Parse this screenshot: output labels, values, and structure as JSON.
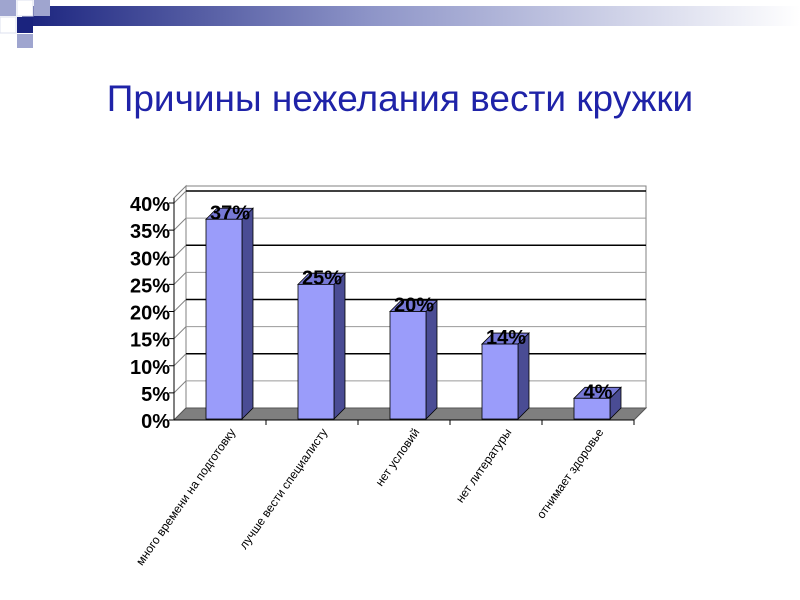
{
  "slide": {
    "title": "Причины нежелания вести кружки"
  },
  "chart_data": {
    "type": "bar",
    "style": "3d-column",
    "categories": [
      "много времени на подготовку",
      "лучше вести специалисту",
      "нет условий",
      "нет литературы",
      "отнимает здоровье"
    ],
    "values": [
      37,
      25,
      20,
      14,
      4
    ],
    "data_labels": [
      "37%",
      "25%",
      "20%",
      "14%",
      "4%"
    ],
    "yticks": [
      "0%",
      "5%",
      "10%",
      "15%",
      "20%",
      "25%",
      "30%",
      "35%",
      "40%"
    ],
    "ylim": [
      0,
      40
    ],
    "title": "",
    "xlabel": "",
    "ylabel": "",
    "grid": true,
    "legend": "none",
    "colors": {
      "bar_front": "#9a9cfa",
      "bar_side": "#4a4c94",
      "bar_top": "#7678d6",
      "floor": "#7f7f7f",
      "title": "#1f23a8",
      "decor_dark": "#1a237e",
      "decor_light": "#9fa5cf"
    }
  }
}
